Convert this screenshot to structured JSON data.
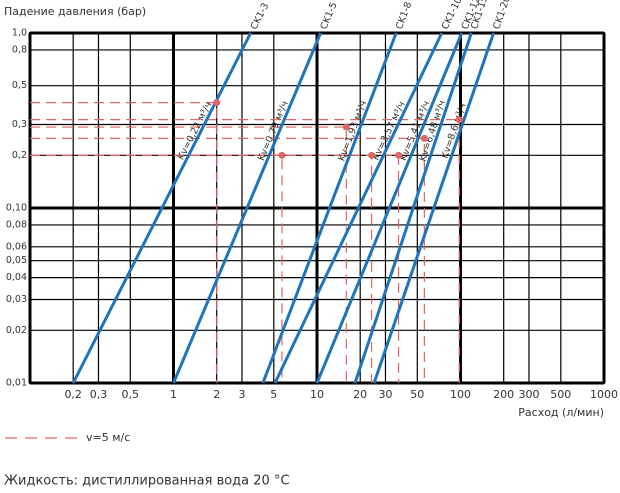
{
  "chart_data": {
    "type": "line",
    "y_label": "Падение давления (бар)",
    "x_label": "Расход (л/мин)",
    "note": "Жидкость: дистиллированная вода 20 °C",
    "log_x": true,
    "log_y": true,
    "grid": true,
    "xlim": [
      0.1,
      1000
    ],
    "ylim": [
      0.01,
      1
    ],
    "xticks": [
      {
        "value": 0.2,
        "label": "0,2"
      },
      {
        "value": 0.3,
        "label": "0,3"
      },
      {
        "value": 0.5,
        "label": "0,5"
      },
      1,
      2,
      3,
      5,
      10,
      20,
      30,
      50,
      100,
      200,
      300,
      500,
      1000
    ],
    "yticks": [
      {
        "value": 1,
        "label": "1,0"
      },
      {
        "value": 0.8,
        "label": "0,8"
      },
      {
        "value": 0.5,
        "label": "0,5"
      },
      {
        "value": 0.3,
        "label": "0,3"
      },
      {
        "value": 0.2,
        "label": "0,2"
      },
      {
        "value": 0.1,
        "label": "0,10"
      },
      {
        "value": 0.08,
        "label": "0,08"
      },
      {
        "value": 0.06,
        "label": "0,06"
      },
      {
        "value": 0.05,
        "label": "0,05"
      },
      {
        "value": 0.04,
        "label": "0,04"
      },
      {
        "value": 0.03,
        "label": "0,03"
      },
      {
        "value": 0.02,
        "label": "0,02"
      },
      {
        "value": 0.01,
        "label": "0,01"
      }
    ],
    "series": [
      {
        "name": "CK1-3",
        "label": "Kv=0,22 м³/ч",
        "color": "#1f74bb",
        "x": [
          0.2,
          3.45
        ],
        "values": [
          0.01,
          1
        ]
      },
      {
        "name": "CK1-5",
        "label": "Kv=0,79 м³/ч",
        "color": "#1f74bb",
        "x": [
          1,
          10.6
        ],
        "values": [
          0.01,
          1
        ]
      },
      {
        "name": "CK1-8",
        "label": "Kv=1,93 м³/ч",
        "color": "#1f74bb",
        "x": [
          4.2,
          35.6
        ],
        "values": [
          0.01,
          1
        ]
      },
      {
        "name": "CK1-10",
        "label": "Kv=3,57 м³/ч",
        "color": "#1f74bb",
        "x": [
          5.1,
          74
        ],
        "values": [
          0.01,
          1
        ]
      },
      {
        "name": "CK1-12",
        "label": "Kv=5,41 м³/ч",
        "color": "#1f74bb",
        "x": [
          10,
          102
        ],
        "values": [
          0.01,
          1
        ]
      },
      {
        "name": "CK1-15",
        "label": "Kv=6,48 м³/ч",
        "color": "#1f74bb",
        "x": [
          18.4,
          119
        ],
        "values": [
          0.01,
          1
        ]
      },
      {
        "name": "CK1-20",
        "label": "Kv=8,6 м³/ч",
        "color": "#1f74bb",
        "x": [
          25,
          170
        ],
        "values": [
          0.01,
          1
        ]
      }
    ],
    "markers": {
      "name": "v=5 м/с",
      "color": "#e06666",
      "x": [
        2,
        5.7,
        16,
        24,
        37,
        56,
        98
      ],
      "values": [
        0.4,
        0.2,
        0.29,
        0.2,
        0.2,
        0.25,
        0.32
      ]
    }
  }
}
